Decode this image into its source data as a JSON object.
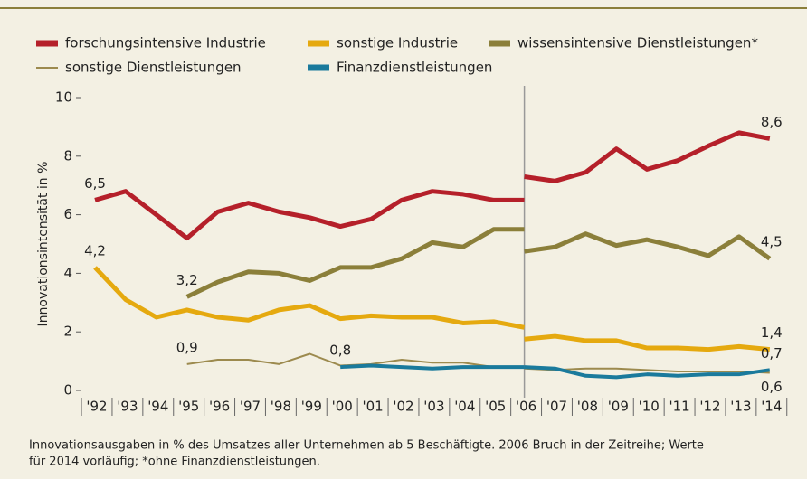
{
  "chart_data": {
    "type": "line",
    "y_label": "Innovationsintensität in %",
    "categories": [
      "'92",
      "'93",
      "'94",
      "'95",
      "'96",
      "'97",
      "'98",
      "'99",
      "'00",
      "'01",
      "'02",
      "'03",
      "'04",
      "'05",
      "'06",
      "'07",
      "'08",
      "'09",
      "'10",
      "'11",
      "'12",
      "'13",
      "'14"
    ],
    "ylim": [
      0,
      10
    ],
    "yticks": [
      0,
      2,
      4,
      6,
      8,
      10
    ],
    "series": [
      {
        "name": "forschungsintensive Industrie",
        "color": "#b5202a",
        "width": 5,
        "segments": [
          {
            "values": [
              6.5,
              6.8,
              6.0,
              5.2,
              6.1,
              6.4,
              6.1,
              5.9,
              5.6,
              5.85,
              6.5,
              6.8,
              6.7,
              6.5,
              6.5,
              null,
              null,
              null,
              null,
              null,
              null,
              null,
              null
            ],
            "value_labels": [
              "6,5",
              null,
              null,
              null,
              null,
              null,
              null,
              null,
              null,
              null,
              null,
              null,
              null,
              null,
              null,
              null,
              null,
              null,
              null,
              null,
              null,
              null,
              null
            ]
          },
          {
            "values": [
              null,
              null,
              null,
              null,
              null,
              null,
              null,
              null,
              null,
              null,
              null,
              null,
              null,
              null,
              7.3,
              7.15,
              7.45,
              8.25,
              7.55,
              7.85,
              8.35,
              8.8,
              8.6
            ],
            "value_labels": [
              null,
              null,
              null,
              null,
              null,
              null,
              null,
              null,
              null,
              null,
              null,
              null,
              null,
              null,
              null,
              null,
              null,
              null,
              null,
              null,
              null,
              null,
              "8,6"
            ]
          }
        ]
      },
      {
        "name": "sonstige Industrie",
        "color": "#e5a90f",
        "width": 5,
        "segments": [
          {
            "values": [
              4.2,
              3.1,
              2.5,
              2.75,
              2.5,
              2.4,
              2.75,
              2.9,
              2.45,
              2.55,
              2.5,
              2.5,
              2.3,
              2.35,
              2.15,
              null,
              null,
              null,
              null,
              null,
              null,
              null,
              null
            ],
            "value_labels": [
              "4,2",
              null,
              null,
              null,
              null,
              null,
              null,
              null,
              null,
              null,
              null,
              null,
              null,
              null,
              null,
              null,
              null,
              null,
              null,
              null,
              null,
              null,
              null
            ]
          },
          {
            "values": [
              null,
              null,
              null,
              null,
              null,
              null,
              null,
              null,
              null,
              null,
              null,
              null,
              null,
              null,
              1.75,
              1.85,
              1.7,
              1.7,
              1.45,
              1.45,
              1.4,
              1.5,
              1.4
            ],
            "value_labels": [
              null,
              null,
              null,
              null,
              null,
              null,
              null,
              null,
              null,
              null,
              null,
              null,
              null,
              null,
              null,
              null,
              null,
              null,
              null,
              null,
              null,
              null,
              "1,4"
            ]
          }
        ]
      },
      {
        "name": "wissensintensive Dienstleistungen*",
        "color": "#8b7f3a",
        "width": 5,
        "segments": [
          {
            "values": [
              null,
              null,
              null,
              3.2,
              3.7,
              4.05,
              4.0,
              3.75,
              4.2,
              4.2,
              4.5,
              5.05,
              4.9,
              5.5,
              5.5,
              null,
              null,
              null,
              null,
              null,
              null,
              null,
              null
            ],
            "value_labels": [
              null,
              null,
              null,
              "3,2",
              null,
              null,
              null,
              null,
              null,
              null,
              null,
              null,
              null,
              null,
              null,
              null,
              null,
              null,
              null,
              null,
              null,
              null,
              null
            ]
          },
          {
            "values": [
              null,
              null,
              null,
              null,
              null,
              null,
              null,
              null,
              null,
              null,
              null,
              null,
              null,
              null,
              4.75,
              4.9,
              5.35,
              4.95,
              5.15,
              4.9,
              4.6,
              5.25,
              4.5
            ],
            "value_labels": [
              null,
              null,
              null,
              null,
              null,
              null,
              null,
              null,
              null,
              null,
              null,
              null,
              null,
              null,
              null,
              null,
              null,
              null,
              null,
              null,
              null,
              null,
              "4,5"
            ]
          }
        ]
      },
      {
        "name": "sonstige Dienstleistungen",
        "color": "#9c8a4e",
        "width": 2,
        "segments": [
          {
            "values": [
              null,
              null,
              null,
              0.9,
              1.05,
              1.05,
              0.9,
              1.25,
              0.85,
              0.9,
              1.05,
              0.95,
              0.95,
              0.8,
              0.8,
              null,
              null,
              null,
              null,
              null,
              null,
              null,
              null
            ],
            "value_labels": [
              null,
              null,
              null,
              "0,9",
              null,
              null,
              null,
              null,
              null,
              null,
              null,
              null,
              null,
              null,
              null,
              null,
              null,
              null,
              null,
              null,
              null,
              null,
              null
            ]
          },
          {
            "values": [
              null,
              null,
              null,
              null,
              null,
              null,
              null,
              null,
              null,
              null,
              null,
              null,
              null,
              null,
              0.75,
              0.7,
              0.75,
              0.75,
              0.7,
              0.65,
              0.65,
              0.65,
              0.6
            ],
            "value_labels": [
              null,
              null,
              null,
              null,
              null,
              null,
              null,
              null,
              null,
              null,
              null,
              null,
              null,
              null,
              null,
              null,
              null,
              null,
              null,
              null,
              null,
              null,
              "0,6"
            ]
          }
        ]
      },
      {
        "name": "Finanzdienstleistungen",
        "color": "#1a7a9c",
        "width": 4,
        "segments": [
          {
            "values": [
              null,
              null,
              null,
              null,
              null,
              null,
              null,
              null,
              0.8,
              0.85,
              0.8,
              0.75,
              0.8,
              0.8,
              0.8,
              null,
              null,
              null,
              null,
              null,
              null,
              null,
              null
            ],
            "value_labels": [
              null,
              null,
              null,
              null,
              null,
              null,
              null,
              null,
              "0,8",
              null,
              null,
              null,
              null,
              null,
              null,
              null,
              null,
              null,
              null,
              null,
              null,
              null,
              null
            ]
          },
          {
            "values": [
              null,
              null,
              null,
              null,
              null,
              null,
              null,
              null,
              null,
              null,
              null,
              null,
              null,
              null,
              0.8,
              0.75,
              0.5,
              0.45,
              0.55,
              0.5,
              0.55,
              0.55,
              0.7
            ],
            "value_labels": [
              null,
              null,
              null,
              null,
              null,
              null,
              null,
              null,
              null,
              null,
              null,
              null,
              null,
              null,
              null,
              null,
              null,
              null,
              null,
              null,
              null,
              null,
              "0,7"
            ]
          }
        ]
      }
    ],
    "footnote": [
      "Innovationsausgaben in % des Umsatzes aller Unternehmen ab 5 Beschäftigte. 2006 Bruch in der Zeitreihe; Werte",
      "für 2014 vorläufig; *ohne Finanzdienstleistungen."
    ]
  }
}
